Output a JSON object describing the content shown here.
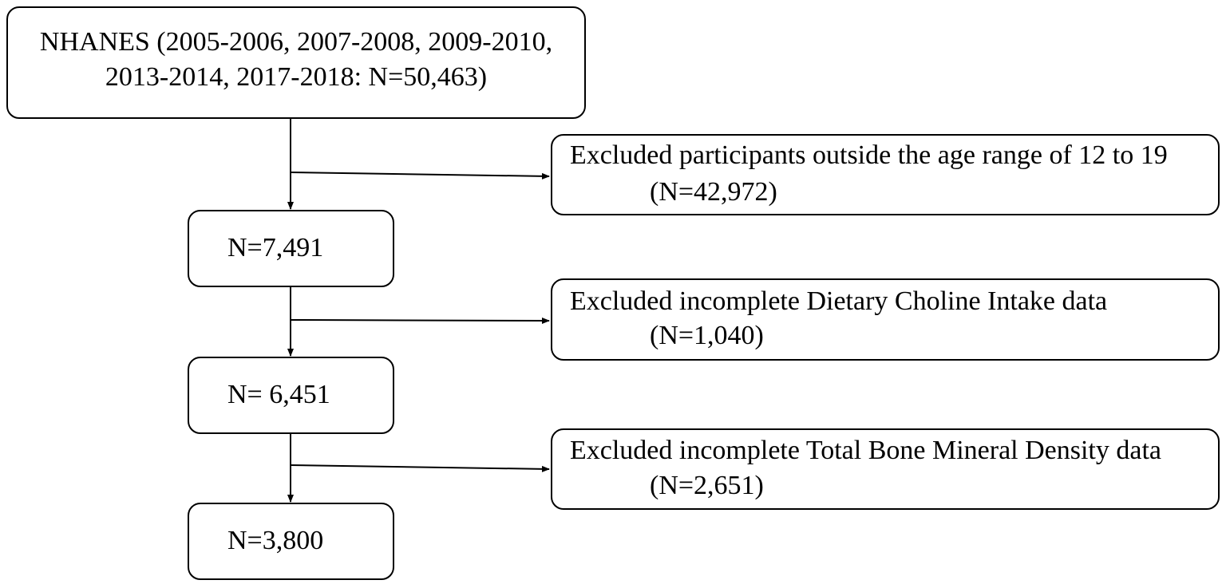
{
  "source_box": {
    "line1": "NHANES (2005-2006,  2007-2008, 2009-2010,",
    "line2": "2013-2014, 2017-2018: N=50,463)"
  },
  "steps": [
    {
      "label": "N=7,491"
    },
    {
      "label": "N= 6,451"
    },
    {
      "label": "N=3,800"
    }
  ],
  "exclusions": [
    {
      "line1": "Excluded participants outside the age range of 12 to 19",
      "line2": "(N=42,972)"
    },
    {
      "line1": "Excluded incomplete Dietary Choline Intake data",
      "line2": "(N=1,040)"
    },
    {
      "line1": "Excluded incomplete Total Bone Mineral Density data",
      "line2": "(N=2,651)"
    }
  ]
}
